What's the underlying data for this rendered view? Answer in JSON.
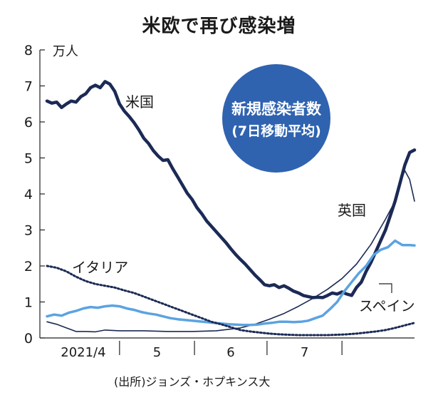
{
  "title": "米欧で再び感染増",
  "source": "(出所)ジョンズ・ホプキンス大",
  "unit_label": "万人",
  "badge": {
    "line1": "新規感染者数",
    "line2": "(7日移動平均)",
    "color": "#2f63b0"
  },
  "chart_data": {
    "type": "line",
    "title": "米欧で再び感染増",
    "ylabel": "万人",
    "ylim": [
      0,
      8
    ],
    "y_ticks": [
      0,
      1,
      2,
      3,
      4,
      5,
      6,
      7,
      8
    ],
    "x_range_days": [
      0,
      152
    ],
    "x_ticks": [
      {
        "label": "2021/4",
        "pos": 15
      },
      {
        "label": "5",
        "pos": 45.5
      },
      {
        "label": "6",
        "pos": 76
      },
      {
        "label": "7",
        "pos": 106.5
      }
    ],
    "x_boundaries": [
      30,
      61,
      91,
      122
    ],
    "series": [
      {
        "name": "米国",
        "color": "#1b2a55",
        "width": 4.5,
        "dash": "",
        "points": [
          [
            0,
            6.58
          ],
          [
            2,
            6.52
          ],
          [
            4,
            6.55
          ],
          [
            6,
            6.4
          ],
          [
            8,
            6.5
          ],
          [
            10,
            6.58
          ],
          [
            12,
            6.55
          ],
          [
            14,
            6.7
          ],
          [
            16,
            6.78
          ],
          [
            18,
            6.95
          ],
          [
            20,
            7.02
          ],
          [
            22,
            6.95
          ],
          [
            24,
            7.12
          ],
          [
            26,
            7.05
          ],
          [
            28,
            6.85
          ],
          [
            30,
            6.5
          ],
          [
            32,
            6.3
          ],
          [
            34,
            6.15
          ],
          [
            36,
            5.98
          ],
          [
            38,
            5.78
          ],
          [
            40,
            5.55
          ],
          [
            42,
            5.4
          ],
          [
            44,
            5.2
          ],
          [
            46,
            5.05
          ],
          [
            48,
            4.93
          ],
          [
            50,
            4.95
          ],
          [
            52,
            4.7
          ],
          [
            54,
            4.48
          ],
          [
            56,
            4.25
          ],
          [
            58,
            4.02
          ],
          [
            60,
            3.85
          ],
          [
            62,
            3.62
          ],
          [
            64,
            3.45
          ],
          [
            66,
            3.25
          ],
          [
            68,
            3.1
          ],
          [
            70,
            2.95
          ],
          [
            72,
            2.8
          ],
          [
            74,
            2.65
          ],
          [
            76,
            2.48
          ],
          [
            78,
            2.32
          ],
          [
            80,
            2.18
          ],
          [
            82,
            2.05
          ],
          [
            84,
            1.9
          ],
          [
            86,
            1.75
          ],
          [
            88,
            1.62
          ],
          [
            90,
            1.48
          ],
          [
            92,
            1.45
          ],
          [
            94,
            1.48
          ],
          [
            96,
            1.4
          ],
          [
            98,
            1.45
          ],
          [
            100,
            1.38
          ],
          [
            102,
            1.3
          ],
          [
            104,
            1.25
          ],
          [
            106,
            1.18
          ],
          [
            108,
            1.15
          ],
          [
            110,
            1.12
          ],
          [
            112,
            1.13
          ],
          [
            114,
            1.12
          ],
          [
            116,
            1.18
          ],
          [
            118,
            1.25
          ],
          [
            120,
            1.22
          ],
          [
            122,
            1.28
          ],
          [
            124,
            1.22
          ],
          [
            126,
            1.18
          ],
          [
            128,
            1.4
          ],
          [
            130,
            1.55
          ],
          [
            132,
            1.85
          ],
          [
            134,
            2.1
          ],
          [
            136,
            2.4
          ],
          [
            138,
            2.7
          ],
          [
            140,
            3.0
          ],
          [
            142,
            3.4
          ],
          [
            144,
            3.8
          ],
          [
            146,
            4.3
          ],
          [
            148,
            4.8
          ],
          [
            150,
            5.15
          ],
          [
            152,
            5.22
          ]
        ]
      },
      {
        "name": "英国",
        "color": "#1b2a55",
        "width": 1.6,
        "dash": "",
        "points": [
          [
            0,
            0.45
          ],
          [
            4,
            0.38
          ],
          [
            8,
            0.28
          ],
          [
            12,
            0.18
          ],
          [
            16,
            0.18
          ],
          [
            20,
            0.17
          ],
          [
            24,
            0.22
          ],
          [
            30,
            0.2
          ],
          [
            40,
            0.2
          ],
          [
            50,
            0.18
          ],
          [
            60,
            0.18
          ],
          [
            70,
            0.2
          ],
          [
            80,
            0.28
          ],
          [
            86,
            0.38
          ],
          [
            92,
            0.52
          ],
          [
            98,
            0.68
          ],
          [
            104,
            0.88
          ],
          [
            110,
            1.1
          ],
          [
            116,
            1.35
          ],
          [
            122,
            1.65
          ],
          [
            128,
            2.05
          ],
          [
            134,
            2.6
          ],
          [
            140,
            3.3
          ],
          [
            144,
            3.8
          ],
          [
            146,
            4.3
          ],
          [
            148,
            4.65
          ],
          [
            150,
            4.4
          ],
          [
            152,
            3.8
          ]
        ]
      },
      {
        "name": "スペイン",
        "color": "#5ba3e1",
        "width": 3.5,
        "dash": "",
        "points": [
          [
            0,
            0.6
          ],
          [
            3,
            0.65
          ],
          [
            6,
            0.62
          ],
          [
            9,
            0.7
          ],
          [
            12,
            0.75
          ],
          [
            15,
            0.82
          ],
          [
            18,
            0.86
          ],
          [
            21,
            0.84
          ],
          [
            24,
            0.88
          ],
          [
            27,
            0.9
          ],
          [
            30,
            0.88
          ],
          [
            33,
            0.82
          ],
          [
            36,
            0.78
          ],
          [
            39,
            0.72
          ],
          [
            42,
            0.68
          ],
          [
            45,
            0.65
          ],
          [
            48,
            0.6
          ],
          [
            51,
            0.55
          ],
          [
            54,
            0.52
          ],
          [
            57,
            0.5
          ],
          [
            60,
            0.48
          ],
          [
            63,
            0.46
          ],
          [
            66,
            0.44
          ],
          [
            69,
            0.42
          ],
          [
            72,
            0.4
          ],
          [
            75,
            0.38
          ],
          [
            78,
            0.37
          ],
          [
            81,
            0.36
          ],
          [
            84,
            0.36
          ],
          [
            87,
            0.37
          ],
          [
            90,
            0.4
          ],
          [
            93,
            0.42
          ],
          [
            96,
            0.45
          ],
          [
            99,
            0.45
          ],
          [
            102,
            0.44
          ],
          [
            105,
            0.45
          ],
          [
            108,
            0.48
          ],
          [
            111,
            0.55
          ],
          [
            114,
            0.62
          ],
          [
            117,
            0.8
          ],
          [
            120,
            1.0
          ],
          [
            123,
            1.3
          ],
          [
            126,
            1.55
          ],
          [
            129,
            1.8
          ],
          [
            132,
            2.0
          ],
          [
            135,
            2.3
          ],
          [
            138,
            2.45
          ],
          [
            141,
            2.52
          ],
          [
            144,
            2.7
          ],
          [
            147,
            2.58
          ],
          [
            150,
            2.58
          ],
          [
            152,
            2.57
          ]
        ]
      },
      {
        "name": "イタリア",
        "color": "#1b2a55",
        "width": 3,
        "dash": "2 3",
        "points": [
          [
            0,
            2.0
          ],
          [
            4,
            1.95
          ],
          [
            8,
            1.85
          ],
          [
            12,
            1.7
          ],
          [
            16,
            1.58
          ],
          [
            20,
            1.5
          ],
          [
            24,
            1.45
          ],
          [
            28,
            1.4
          ],
          [
            32,
            1.32
          ],
          [
            36,
            1.25
          ],
          [
            40,
            1.15
          ],
          [
            44,
            1.05
          ],
          [
            48,
            0.95
          ],
          [
            52,
            0.85
          ],
          [
            56,
            0.75
          ],
          [
            60,
            0.65
          ],
          [
            64,
            0.55
          ],
          [
            68,
            0.45
          ],
          [
            72,
            0.38
          ],
          [
            76,
            0.3
          ],
          [
            80,
            0.22
          ],
          [
            84,
            0.18
          ],
          [
            88,
            0.15
          ],
          [
            92,
            0.12
          ],
          [
            96,
            0.1
          ],
          [
            100,
            0.09
          ],
          [
            104,
            0.08
          ],
          [
            108,
            0.08
          ],
          [
            112,
            0.08
          ],
          [
            116,
            0.08
          ],
          [
            120,
            0.09
          ],
          [
            124,
            0.1
          ],
          [
            128,
            0.12
          ],
          [
            132,
            0.15
          ],
          [
            136,
            0.18
          ],
          [
            140,
            0.22
          ],
          [
            144,
            0.28
          ],
          [
            148,
            0.35
          ],
          [
            152,
            0.42
          ]
        ]
      }
    ],
    "series_labels": [
      {
        "name": "米国"
      },
      {
        "name": "英国"
      },
      {
        "name": "イタリア"
      },
      {
        "name": "スペイン"
      }
    ]
  }
}
